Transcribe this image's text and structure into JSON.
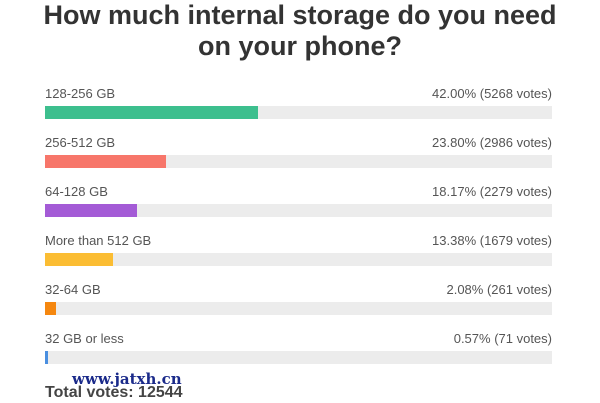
{
  "chart_data": {
    "type": "bar",
    "orientation": "horizontal",
    "title": "How much internal storage do you need on your phone?",
    "categories": [
      "128-256 GB",
      "256-512 GB",
      "64-128 GB",
      "More than 512 GB",
      "32-64 GB",
      "32 GB or less"
    ],
    "values": [
      42.0,
      23.8,
      18.17,
      13.38,
      2.08,
      0.57
    ],
    "value_labels": [
      "42.00% (5268 votes)",
      "23.80% (2986 votes)",
      "18.17% (2279 votes)",
      "13.38% (1679 votes)",
      "2.08% (261 votes)",
      "0.57% (71 votes)"
    ],
    "colors": [
      "#3dbf8e",
      "#f7766a",
      "#a45bd6",
      "#fbbd33",
      "#f5870f",
      "#4a8fe0"
    ],
    "xlim": [
      0,
      100
    ],
    "footer": "Total votes: 12544",
    "watermark": "www.jatxh.cn"
  }
}
